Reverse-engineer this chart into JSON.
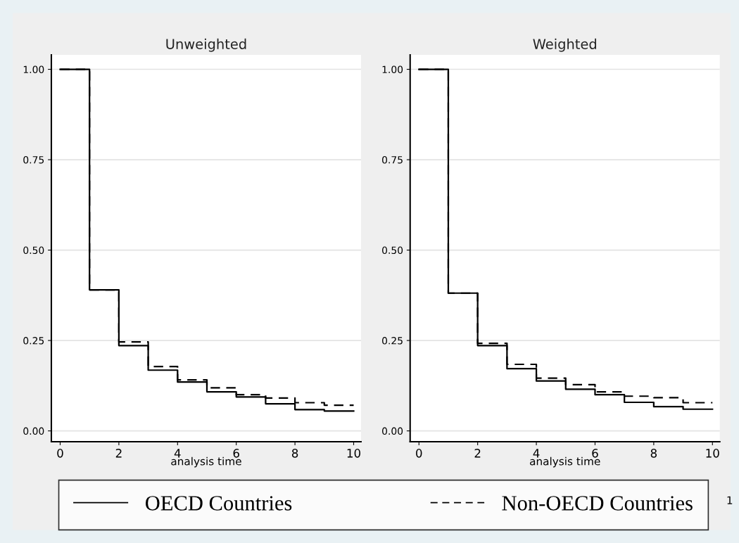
{
  "chart_data": [
    {
      "type": "step",
      "title": "Unweighted",
      "xlabel": "analysis time",
      "x": [
        0,
        1,
        2,
        3,
        4,
        5,
        6,
        7,
        8,
        9,
        10
      ],
      "series": [
        {
          "name": "OECD Countries",
          "color": "#000000",
          "line_style": "solid",
          "values": [
            1.0,
            0.39,
            0.236,
            0.168,
            0.135,
            0.108,
            0.094,
            0.075,
            0.059,
            0.055,
            0.055
          ]
        },
        {
          "name": "Non-OECD Countries",
          "color": "#000000",
          "line_style": "dashed",
          "values": [
            1.0,
            0.39,
            0.246,
            0.178,
            0.141,
            0.119,
            0.1,
            0.091,
            0.078,
            0.071,
            0.071
          ]
        }
      ],
      "xlim": [
        -0.3,
        10.25
      ],
      "ylim": [
        -0.03,
        1.04
      ],
      "xticks": [
        0,
        2,
        4,
        6,
        8,
        10
      ],
      "yticks": [
        {
          "value": 0,
          "label": "0.00"
        },
        {
          "value": 0.25,
          "label": "0.25"
        },
        {
          "value": 0.5,
          "label": "0.50"
        },
        {
          "value": 0.75,
          "label": "0.75"
        },
        {
          "value": 1,
          "label": "1.00"
        }
      ],
      "grid": "y",
      "legend": "bottom",
      "annotations": [
        "1"
      ]
    },
    {
      "type": "step",
      "title": "Weighted",
      "xlabel": "analysis time",
      "x": [
        0,
        1,
        2,
        3,
        4,
        5,
        6,
        7,
        8,
        9,
        10
      ],
      "series": [
        {
          "color": "#000000",
          "line_style": "solid",
          "values": [
            1.0,
            0.381,
            0.236,
            0.172,
            0.138,
            0.115,
            0.1,
            0.079,
            0.067,
            0.06,
            0.06
          ]
        },
        {
          "color": "#000000",
          "line_style": "dashed",
          "values": [
            1.0,
            0.381,
            0.242,
            0.184,
            0.146,
            0.128,
            0.108,
            0.096,
            0.092,
            0.078,
            0.078
          ]
        }
      ],
      "xlim": [
        -0.3,
        10.25
      ],
      "ylim": [
        -0.03,
        1.04
      ],
      "xticks": [
        0,
        2,
        4,
        6,
        8,
        10
      ],
      "yticks": [
        {
          "value": 0,
          "label": "0.00"
        },
        {
          "value": 0.25,
          "label": "0.25"
        },
        {
          "value": 0.5,
          "label": "0.50"
        },
        {
          "value": 0.75,
          "label": "0.75"
        },
        {
          "value": 1,
          "label": "1.00"
        }
      ],
      "grid": "y"
    }
  ]
}
